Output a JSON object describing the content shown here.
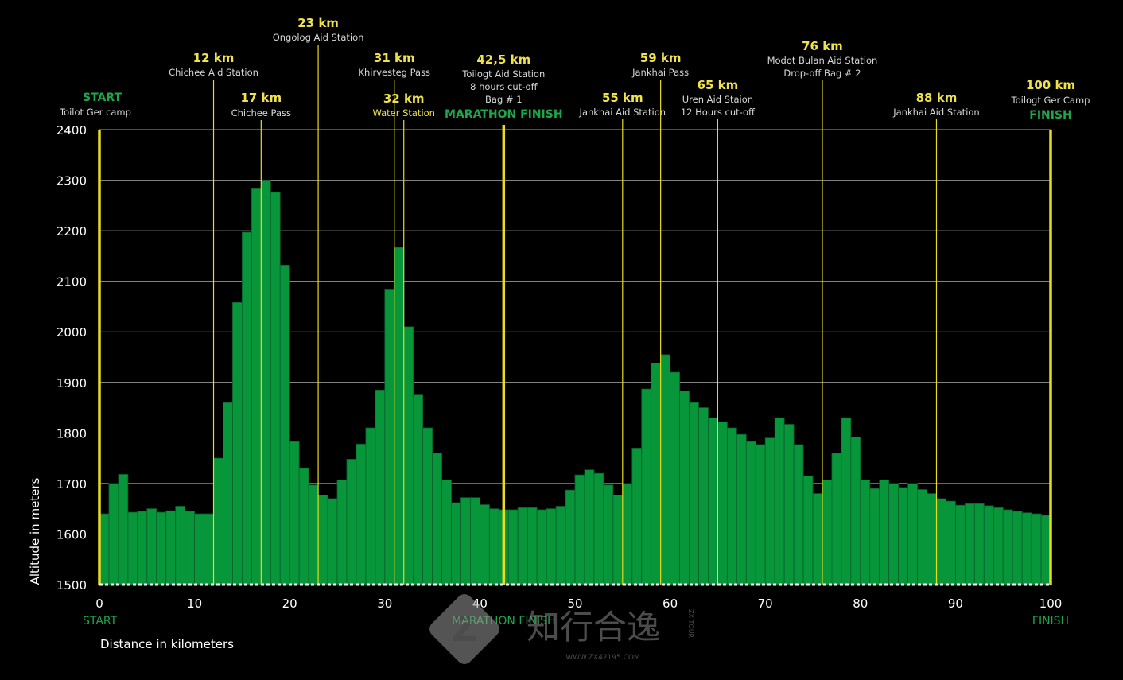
{
  "chart_data": {
    "type": "bar",
    "title": "",
    "xlabel": "Distance in kilometers",
    "ylabel": "Altitude in meters",
    "xlim": [
      0,
      100
    ],
    "ylim": [
      1500,
      2400
    ],
    "x_ticks": [
      "0",
      "10",
      "20",
      "30",
      "40",
      "50",
      "60",
      "70",
      "80",
      "90",
      "100"
    ],
    "y_ticks": [
      "1500",
      "1600",
      "1700",
      "1800",
      "1900",
      "2000",
      "2100",
      "2200",
      "2300",
      "2400"
    ],
    "grid": true,
    "bar_width_km": 1,
    "colors": {
      "bar": "#079639",
      "bar_edge": "#0b5e2c",
      "marker": "#e8dc1c",
      "grid": "#cfcfcf",
      "green_text": "#1fa64a",
      "km_text": "#f0e24a",
      "desc_text": "#d8d8d8"
    },
    "values": [
      1640,
      1700,
      1718,
      1643,
      1645,
      1650,
      1643,
      1646,
      1655,
      1645,
      1640,
      1640,
      1750,
      1860,
      2058,
      2197,
      2283,
      2300,
      2276,
      2132,
      1783,
      1730,
      1697,
      1677,
      1670,
      1707,
      1748,
      1778,
      1810,
      1885,
      2083,
      2167,
      2010,
      1875,
      1810,
      1760,
      1707,
      1662,
      1672,
      1672,
      1658,
      1650,
      1648,
      1648,
      1652,
      1652,
      1648,
      1650,
      1655,
      1687,
      1717,
      1727,
      1720,
      1697,
      1677,
      1700,
      1770,
      1887,
      1938,
      1955,
      1920,
      1883,
      1860,
      1850,
      1830,
      1822,
      1810,
      1797,
      1783,
      1777,
      1790,
      1830,
      1817,
      1777,
      1715,
      1680,
      1707,
      1760,
      1830,
      1792,
      1707,
      1690,
      1707,
      1700,
      1692,
      1700,
      1688,
      1680,
      1670,
      1665,
      1657,
      1660,
      1660,
      1656,
      1652,
      1648,
      1645,
      1642,
      1640,
      1637
    ],
    "markers": [
      {
        "km": 0,
        "km_label": "",
        "desc1": "Toilot Ger camp",
        "desc2": "",
        "desc3": "",
        "heading": "START",
        "bold": true
      },
      {
        "km": 12,
        "km_label": "12 km",
        "desc1": "Chichee Aid Station",
        "desc2": "",
        "desc3": "",
        "heading": "",
        "bold": false
      },
      {
        "km": 17,
        "km_label": "17 km",
        "desc1": "Chichee Pass",
        "desc2": "",
        "desc3": "",
        "heading": "",
        "bold": false
      },
      {
        "km": 23,
        "km_label": "23 km",
        "desc1": "Ongolog Aid Station",
        "desc2": "",
        "desc3": "",
        "heading": "",
        "bold": false
      },
      {
        "km": 31,
        "km_label": "31 km",
        "desc1": "Khirvesteg Pass",
        "desc2": "",
        "desc3": "",
        "heading": "",
        "bold": false
      },
      {
        "km": 32,
        "km_label": "32 km",
        "desc1": "Water Station",
        "desc2": "",
        "desc3": "",
        "heading": "",
        "bold": false
      },
      {
        "km": 42.5,
        "km_label": "42,5 km",
        "desc1": "Toilogt Aid Station",
        "desc2": "8 hours cut-off",
        "desc3": "Bag # 1",
        "heading": "MARATHON FINISH",
        "bold": true
      },
      {
        "km": 55,
        "km_label": "55 km",
        "desc1": "Jankhai Aid Station",
        "desc2": "",
        "desc3": "",
        "heading": "",
        "bold": false
      },
      {
        "km": 59,
        "km_label": "59 km",
        "desc1": "Jankhai Pass",
        "desc2": "",
        "desc3": "",
        "heading": "",
        "bold": false
      },
      {
        "km": 65,
        "km_label": "65 km",
        "desc1": "Uren Aid Staion",
        "desc2": "12 Hours cut-off",
        "desc3": "",
        "heading": "",
        "bold": false
      },
      {
        "km": 76,
        "km_label": "76 km",
        "desc1": "Modot Bulan Aid Station",
        "desc2": "Drop-off Bag # 2",
        "desc3": "",
        "heading": "",
        "bold": false
      },
      {
        "km": 88,
        "km_label": "88 km",
        "desc1": "Jankhai Aid Station",
        "desc2": "",
        "desc3": "",
        "heading": "",
        "bold": false
      },
      {
        "km": 100,
        "km_label": "100 km",
        "desc1": "Toilogt Ger Camp",
        "desc2": "",
        "desc3": "",
        "heading": "FINISH",
        "bold": true
      }
    ],
    "below_axis_labels": [
      {
        "km": 0,
        "text": "START"
      },
      {
        "km": 42.5,
        "text": "MARATHON FINISH"
      },
      {
        "km": 100,
        "text": "FINISH"
      }
    ]
  },
  "watermark": {
    "logo_letter": "Z",
    "brand_cn": "知行合逸",
    "brand_side": "ZX TOUR",
    "url": "WWW.ZX42195.COM"
  }
}
